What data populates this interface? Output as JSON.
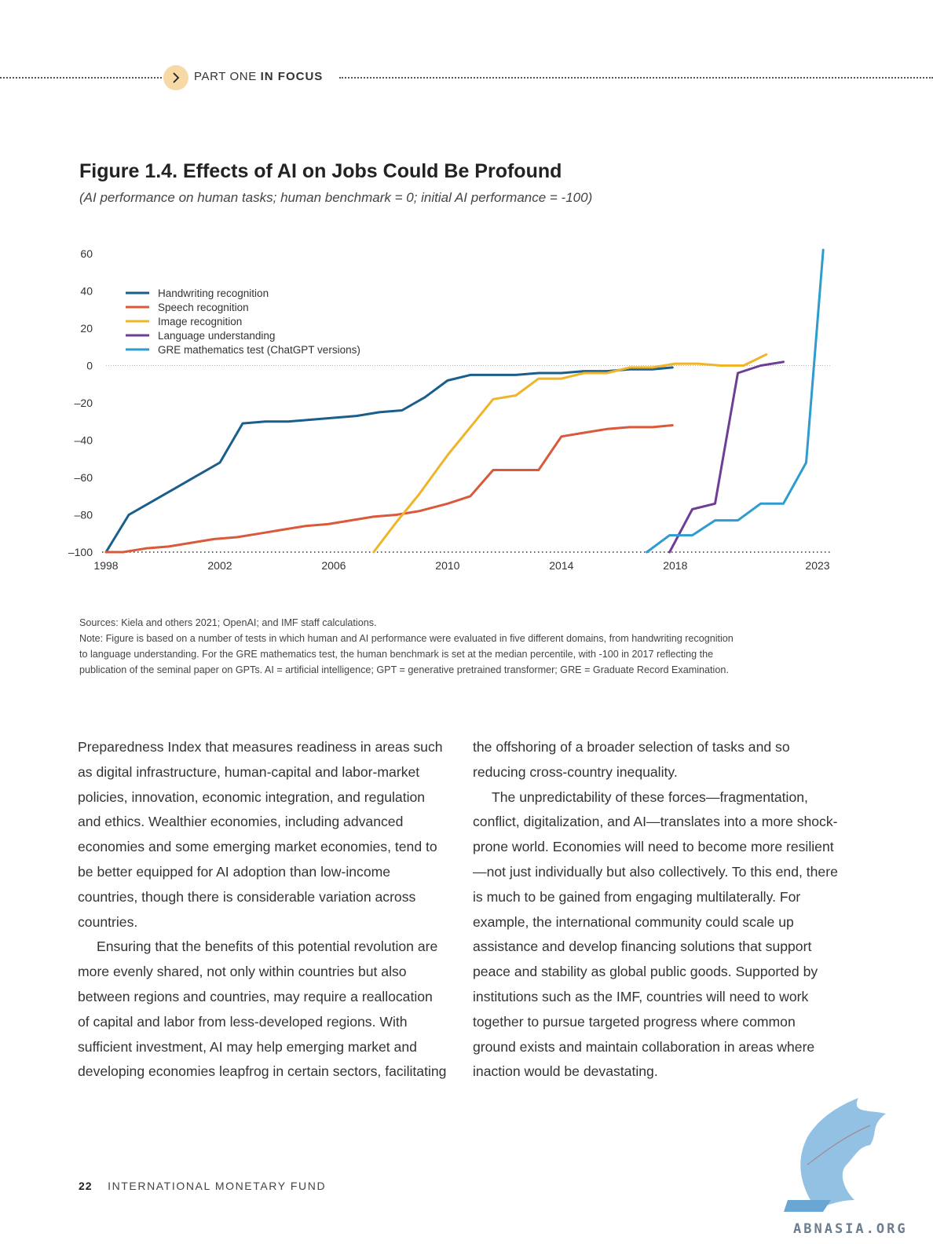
{
  "header": {
    "section_prefix": "PART ONE",
    "section_emphasis": "IN FOCUS"
  },
  "figure": {
    "title": "Figure 1.4. Effects of AI on Jobs Could Be Profound",
    "subtitle": "(AI performance on human tasks; human benchmark = 0; initial AI performance = -100)",
    "sources": "Sources: Kiela and others 2021; OpenAI; and IMF staff calculations.",
    "note_lines": [
      "Note: Figure is based on a number of tests in which human and AI performance were evaluated in five different domains, from handwriting recognition",
      "to language understanding. For the GRE mathematics test, the human benchmark is set at the median percentile, with -100 in 2017 reflecting the",
      "publication of the seminal paper on GPTs. AI = artificial intelligence; GPT = generative pretrained transformer; GRE = Graduate Record Examination."
    ]
  },
  "chart_data": {
    "type": "line",
    "title": "Figure 1.4. Effects of AI on Jobs Could Be Profound",
    "subtitle": "(AI performance on human tasks; human benchmark = 0; initial AI performance = -100)",
    "xlim": [
      1998,
      2023
    ],
    "ylim": [
      -100,
      60
    ],
    "x_ticks": [
      "1998",
      "2002",
      "2006",
      "2010",
      "2014",
      "2018",
      "2023"
    ],
    "y_ticks": [
      "60",
      "40",
      "20",
      "0",
      "–20",
      "–40",
      "–60",
      "–80",
      "–100"
    ],
    "grid": false,
    "reference_line_y": 0,
    "legend_position": "top-left",
    "series": [
      {
        "name": "Handwriting recognition",
        "color": "#1a5e8c",
        "points": [
          [
            1998,
            -100
          ],
          [
            1998.8,
            -80
          ],
          [
            1999.6,
            -73
          ],
          [
            2000.4,
            -66
          ],
          [
            2001.2,
            -59
          ],
          [
            2002,
            -52
          ],
          [
            2002.8,
            -31
          ],
          [
            2003.6,
            -30
          ],
          [
            2004.4,
            -30
          ],
          [
            2005.2,
            -29
          ],
          [
            2006,
            -28
          ],
          [
            2006.8,
            -27
          ],
          [
            2007.6,
            -25
          ],
          [
            2008.4,
            -24
          ],
          [
            2009.2,
            -17
          ],
          [
            2010,
            -8
          ],
          [
            2010.8,
            -5
          ],
          [
            2011.6,
            -5
          ],
          [
            2012.4,
            -5
          ],
          [
            2013.2,
            -4
          ],
          [
            2014,
            -4
          ],
          [
            2014.8,
            -3
          ],
          [
            2015.6,
            -3
          ],
          [
            2016.4,
            -2
          ],
          [
            2017.2,
            -2
          ],
          [
            2017.9,
            -1
          ]
        ]
      },
      {
        "name": "Speech recognition",
        "color": "#d9593a",
        "points": [
          [
            1998,
            -100
          ],
          [
            1998.6,
            -100
          ],
          [
            1999.4,
            -98
          ],
          [
            2000.2,
            -97
          ],
          [
            2001,
            -95
          ],
          [
            2001.8,
            -93
          ],
          [
            2002.6,
            -92
          ],
          [
            2003.4,
            -90
          ],
          [
            2004.2,
            -88
          ],
          [
            2005,
            -86
          ],
          [
            2005.8,
            -85
          ],
          [
            2006.6,
            -83
          ],
          [
            2007.4,
            -81
          ],
          [
            2008.2,
            -80
          ],
          [
            2009,
            -78
          ],
          [
            2010,
            -74
          ],
          [
            2010.8,
            -70
          ],
          [
            2011.6,
            -56
          ],
          [
            2012.4,
            -56
          ],
          [
            2013.2,
            -56
          ],
          [
            2014,
            -38
          ],
          [
            2014.8,
            -36
          ],
          [
            2015.6,
            -34
          ],
          [
            2016.4,
            -33
          ],
          [
            2017.2,
            -33
          ],
          [
            2017.9,
            -32
          ]
        ]
      },
      {
        "name": "Image recognition",
        "color": "#f0b429",
        "points": [
          [
            2007.4,
            -100
          ],
          [
            2008.2,
            -84
          ],
          [
            2009,
            -69
          ],
          [
            2010,
            -48
          ],
          [
            2010.8,
            -33
          ],
          [
            2011.6,
            -18
          ],
          [
            2012.4,
            -16
          ],
          [
            2013.2,
            -7
          ],
          [
            2014,
            -7
          ],
          [
            2014.8,
            -4
          ],
          [
            2015.6,
            -4
          ],
          [
            2016.4,
            -1
          ],
          [
            2017.2,
            -1
          ],
          [
            2018,
            1
          ],
          [
            2018.8,
            1
          ],
          [
            2019.6,
            0
          ],
          [
            2020.4,
            0
          ],
          [
            2021.2,
            6
          ]
        ]
      },
      {
        "name": "Language understanding",
        "color": "#6e3d96",
        "points": [
          [
            2017.8,
            -100
          ],
          [
            2018.6,
            -77
          ],
          [
            2019.4,
            -74
          ],
          [
            2020.2,
            -4
          ],
          [
            2021,
            0
          ],
          [
            2021.8,
            2
          ]
        ]
      },
      {
        "name": "GRE mathematics test (ChatGPT versions)",
        "color": "#2e9ccf",
        "points": [
          [
            2017,
            -100
          ],
          [
            2017.8,
            -91
          ],
          [
            2018.6,
            -91
          ],
          [
            2019.4,
            -83
          ],
          [
            2020.2,
            -83
          ],
          [
            2021,
            -74
          ],
          [
            2021.8,
            -74
          ],
          [
            2022.6,
            -52
          ],
          [
            2023.2,
            62
          ]
        ]
      }
    ]
  },
  "body": {
    "left_paragraphs": [
      "Preparedness Index that measures readiness in areas such as digital infrastructure, human-capital and labor-market policies, innovation, economic integration, and regulation and ethics. Wealthier economies, including advanced economies and some emerging market economies, tend to be better equipped for AI adoption than low-income countries, though there is considerable variation across countries.",
      "Ensuring that the benefits of this potential revolution are more evenly shared, not only within countries but also between regions and countries, may require a reallocation of capital and labor from less-developed regions. With sufficient investment, AI may help emerging market and developing economies leapfrog in certain sectors, facilitating"
    ],
    "right_paragraphs": [
      "the offshoring of a broader selection of tasks and so reducing cross-country inequality.",
      "The unpredictability of these forces—fragmentation, conflict, digitalization, and AI—translates into a more shock-prone world. Economies will need to become more resilient—not just individually but also collectively. To this end, there is much to be gained from engaging multilaterally. For example, the international community could scale up assistance and develop financing solutions that support peace and stability as global public goods. Supported by institutions such as the IMF, countries will need to work together to pursue targeted progress where common ground exists and maintain collaboration in areas where inaction would be devastating."
    ]
  },
  "footer": {
    "page_number": "22",
    "publisher": "INTERNATIONAL MONETARY FUND"
  },
  "watermark": {
    "text": "ABNASIA.ORG",
    "color": "#7fb6de"
  }
}
